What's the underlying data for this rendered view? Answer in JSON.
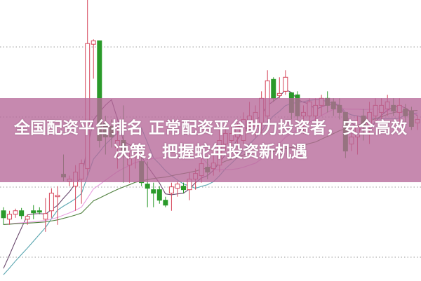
{
  "title": "全国配资平台排名 正常配资平台助力投资者，安全高效决策，把握蛇年投资新机遇",
  "chart_data": {
    "type": "candlestick",
    "title": "",
    "xlabel": "",
    "ylabel": "",
    "ylim": [
      0,
      40
    ],
    "grid": "horizontal dotted",
    "colors": {
      "up": "#d6455a",
      "down": "#2a9a2a",
      "grid": "#999999",
      "banner": "#b66898"
    },
    "moving_averages": [
      {
        "window": 5,
        "color": "#6b4a6e"
      },
      {
        "window": 10,
        "color": "#5aa6b0"
      },
      {
        "window": 20,
        "color": "#e8a0e0"
      },
      {
        "window": 30,
        "color": "#4e7f3c"
      }
    ],
    "candles": [
      [
        10,
        9,
        10.5,
        8
      ],
      [
        8.8,
        9.5,
        10,
        8
      ],
      [
        9.5,
        10,
        10.3,
        9
      ],
      [
        10,
        9.3,
        10.4,
        8.8
      ],
      [
        8.8,
        9.2,
        9.5,
        8
      ],
      [
        10,
        9.7,
        10.8,
        8.8
      ],
      [
        10,
        9.8,
        10.5,
        9.5
      ],
      [
        8.8,
        9.6,
        11.8,
        7
      ],
      [
        10,
        12.5,
        13.2,
        9
      ],
      [
        12,
        12.2,
        13.5,
        8
      ],
      [
        15.2,
        14.8,
        18,
        14.2
      ],
      [
        14.2,
        14.5,
        15,
        13.5
      ],
      [
        13.5,
        15.5,
        16.5,
        10
      ],
      [
        14.5,
        16.7,
        17.3,
        11
      ],
      [
        16,
        33.8,
        40,
        15
      ],
      [
        33.7,
        34.2,
        34.4,
        28.8
      ],
      [
        34.2,
        20,
        34.2,
        19
      ],
      [
        22.5,
        20.5,
        23.5,
        18
      ],
      [
        22,
        20.5,
        23,
        19
      ],
      [
        19,
        20,
        22,
        16
      ],
      [
        20,
        18.5,
        25,
        14
      ],
      [
        16.5,
        17.5,
        18.5,
        14
      ],
      [
        17.8,
        18.5,
        19.5,
        16
      ],
      [
        17,
        14,
        19,
        13.5
      ],
      [
        13.8,
        13.2,
        17,
        10.5
      ],
      [
        13,
        12.5,
        14,
        10.5
      ],
      [
        13,
        11.5,
        13.5,
        11
      ],
      [
        11.5,
        10.8,
        12,
        10.5
      ],
      [
        12.5,
        13.4,
        14,
        10
      ],
      [
        13.2,
        13.8,
        14.2,
        12
      ],
      [
        13.5,
        13,
        14,
        12.5
      ],
      [
        13,
        14.5,
        15.5,
        11.5
      ],
      [
        14.5,
        15.3,
        16,
        13
      ],
      [
        15,
        16.7,
        17.5,
        14
      ],
      [
        16.2,
        15.5,
        17.5,
        14.5
      ],
      [
        16,
        16.8,
        19,
        15
      ],
      [
        16.5,
        20,
        21.5,
        15.5
      ],
      [
        19.5,
        21,
        22,
        18.5
      ],
      [
        20,
        21,
        22,
        19
      ],
      [
        20.5,
        22,
        22.5,
        19.5
      ],
      [
        20,
        23,
        24,
        19.5
      ],
      [
        22.5,
        23.5,
        25.5,
        21.5
      ],
      [
        22,
        24,
        25,
        20.5
      ],
      [
        22.5,
        26,
        27,
        21
      ],
      [
        23.5,
        28.5,
        30,
        23
      ],
      [
        28.7,
        26,
        29,
        25.5
      ],
      [
        26.4,
        26.7,
        29,
        26
      ],
      [
        27,
        29,
        30,
        26.5
      ],
      [
        26.8,
        24,
        26.8,
        23
      ],
      [
        26.5,
        23.5,
        27,
        22.5
      ],
      [
        23.5,
        24,
        25,
        21
      ],
      [
        23.5,
        25.5,
        26,
        22.5
      ],
      [
        23.5,
        25,
        26,
        22.5
      ],
      [
        25,
        26,
        26.5,
        23.5
      ],
      [
        26,
        25,
        27,
        24
      ],
      [
        25.5,
        24.5,
        26,
        23.5
      ],
      [
        25,
        24,
        26,
        23
      ],
      [
        24,
        18.5,
        24,
        17.5
      ],
      [
        19.5,
        20.5,
        22,
        18.5
      ],
      [
        20.5,
        22,
        23.5,
        18
      ],
      [
        23.5,
        22,
        24.5,
        20
      ],
      [
        22,
        24,
        25.5,
        19.5
      ],
      [
        23.5,
        25,
        26,
        22.5
      ],
      [
        24,
        25,
        26,
        23
      ],
      [
        24.5,
        25.5,
        26.5,
        23.5
      ],
      [
        25,
        24.2,
        26,
        23.5
      ],
      [
        24,
        25,
        26,
        22.5
      ],
      [
        24.5,
        23.5,
        25.2,
        22.5
      ],
      [
        24.2,
        22,
        24.8,
        21.5
      ],
      [
        22.5,
        23,
        23.5,
        21.5
      ]
    ],
    "candle_fields": [
      "open",
      "close",
      "high",
      "low"
    ]
  }
}
